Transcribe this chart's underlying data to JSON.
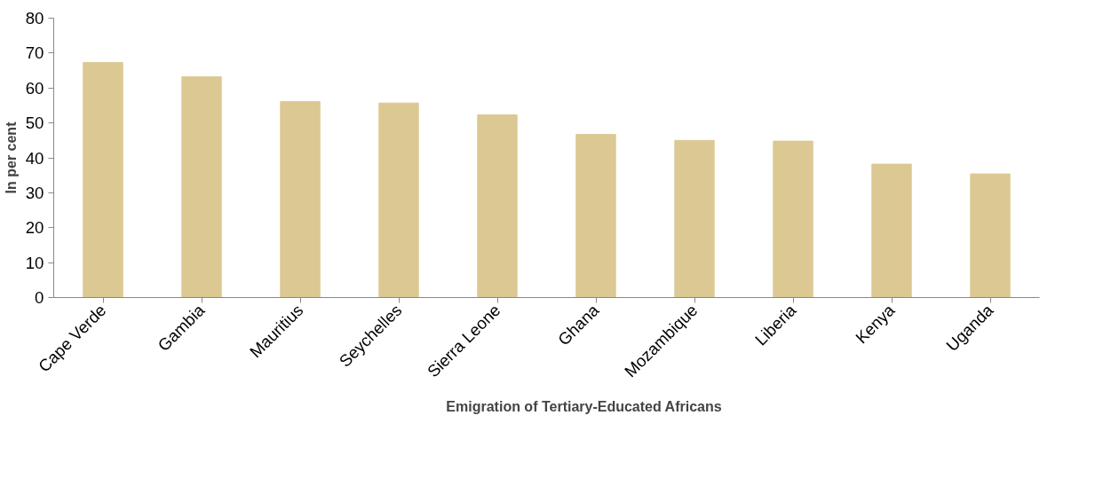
{
  "chart_data": {
    "type": "bar",
    "ylabel": "In per cent",
    "categories": [
      "Cape Verde",
      "Gambia",
      "Mauritius",
      "Seychelles",
      "Sierra Leone",
      "Ghana",
      "Mozambique",
      "Liberia",
      "Kenya",
      "Uganda"
    ],
    "series": [
      {
        "name": "Emigration of Tertiary-Educated Africans",
        "color": "#dcc892",
        "values": [
          67.3,
          63.2,
          56.1,
          55.7,
          52.3,
          46.7,
          45.0,
          44.8,
          38.2,
          35.4
        ]
      }
    ],
    "ylim": [
      0,
      80
    ],
    "yticks": [
      0,
      10,
      20,
      30,
      40,
      50,
      60,
      70,
      80
    ],
    "grid": false,
    "legend": "bottom"
  }
}
